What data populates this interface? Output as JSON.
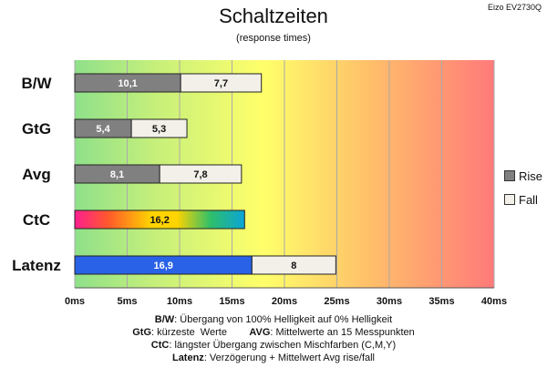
{
  "header": {
    "title": "Schaltzeiten",
    "subtitle": "(response times)",
    "monitor": "Eizo EV2730Q"
  },
  "legend": [
    {
      "label": "Rise",
      "color": "#808080"
    },
    {
      "label": "Fall",
      "color": "#f2f0e8"
    }
  ],
  "colors": {
    "rise": "#808080",
    "fall": "#f2f0e8",
    "latenz_rise": "#2962e6",
    "grid": "#aaaaaa",
    "bg_start": "#8fe08a",
    "bg_mid": "#ffff6a",
    "bg_end": "#ff7a7a"
  },
  "notes": [
    {
      "b1": "B/W",
      "t1": ":  Übergang von 100% Helligkeit auf 0% Helligkeit",
      "b2": "",
      "t2": ""
    },
    {
      "b1": "GtG",
      "t1": ": kürzeste  Werte        ",
      "b2": "AVG",
      "t2": ": Mittelwerte  an 15 Messpunkten"
    },
    {
      "b1": "CtC",
      "t1": ": längster Übergang  zwischen Mischfarben (C,M,Y)",
      "b2": "",
      "t2": ""
    },
    {
      "b1": "Latenz",
      "t1": ": Verzögerung  + Mittelwert Avg rise/fall",
      "b2": "",
      "t2": ""
    }
  ],
  "chart_data": {
    "type": "bar",
    "orientation": "horizontal",
    "stacked": true,
    "categories": [
      "B/W",
      "GtG",
      "Avg",
      "CtC",
      "Latenz"
    ],
    "series": [
      {
        "name": "Rise",
        "values": [
          10.1,
          5.4,
          8.1,
          16.2,
          16.9
        ],
        "labels": [
          "10,1",
          "5,4",
          "8,1",
          "16,2",
          "16,9"
        ]
      },
      {
        "name": "Fall",
        "values": [
          7.7,
          5.3,
          7.8,
          null,
          8
        ],
        "labels": [
          "7,7",
          "5,3",
          "7,8",
          "",
          "8"
        ]
      }
    ],
    "x_ticks": [
      "0ms",
      "5ms",
      "10ms",
      "15ms",
      "20ms",
      "25ms",
      "30ms",
      "35ms",
      "40ms"
    ],
    "xlim": [
      0,
      40
    ],
    "grid": true,
    "legend_position": "right"
  }
}
